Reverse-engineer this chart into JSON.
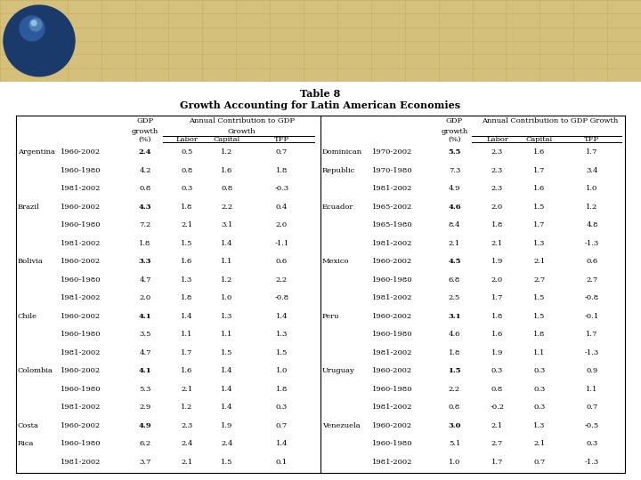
{
  "title_line1": "Table 8",
  "title_line2": "Growth Accounting for Latin American Economies",
  "left_table": {
    "rows": [
      [
        "Argentina",
        "1960-2002",
        "2.4",
        "0.5",
        "1.2",
        "0.7"
      ],
      [
        "",
        "1960-1980",
        "4.2",
        "0.8",
        "1.6",
        "1.8"
      ],
      [
        "",
        "1981-2002",
        "0.8",
        "0.3",
        "0.8",
        "-0.3"
      ],
      [
        "Brazil",
        "1960-2002",
        "4.3",
        "1.8",
        "2.2",
        "0.4"
      ],
      [
        "",
        "1960-1980",
        "7.2",
        "2.1",
        "3.1",
        "2.0"
      ],
      [
        "",
        "1981-2002",
        "1.8",
        "1.5",
        "1.4",
        "-1.1"
      ],
      [
        "Bolivia",
        "1960-2002",
        "3.3",
        "1.6",
        "1.1",
        "0.6"
      ],
      [
        "",
        "1960-1980",
        "4.7",
        "1.3",
        "1.2",
        "2.2"
      ],
      [
        "",
        "1981-2002",
        "2.0",
        "1.8",
        "1.0",
        "-0.8"
      ],
      [
        "Chile",
        "1960-2002",
        "4.1",
        "1.4",
        "1.3",
        "1.4"
      ],
      [
        "",
        "1960-1980",
        "3.5",
        "1.1",
        "1.1",
        "1.3"
      ],
      [
        "",
        "1981-2002",
        "4.7",
        "1.7",
        "1.5",
        "1.5"
      ],
      [
        "Colombia",
        "1960-2002",
        "4.1",
        "1.6",
        "1.4",
        "1.0"
      ],
      [
        "",
        "1960-1980",
        "5.3",
        "2.1",
        "1.4",
        "1.8"
      ],
      [
        "",
        "1981-2002",
        "2.9",
        "1.2",
        "1.4",
        "0.3"
      ],
      [
        "Costa",
        "1960-2002",
        "4.9",
        "2.3",
        "1.9",
        "0.7"
      ],
      [
        "Rica",
        "1960-1980",
        "6.2",
        "2.4",
        "2.4",
        "1.4"
      ],
      [
        "",
        "1981-2002",
        "3.7",
        "2.1",
        "1.5",
        "0.1"
      ]
    ]
  },
  "right_table": {
    "rows": [
      [
        "Dominican",
        "1970-2002",
        "5.5",
        "2.3",
        "1.6",
        "1.7"
      ],
      [
        "Republic",
        "1970-1980",
        "7.3",
        "2.3",
        "1.7",
        "3.4"
      ],
      [
        "",
        "1981-2002",
        "4.9",
        "2.3",
        "1.6",
        "1.0"
      ],
      [
        "Ecuador",
        "1965-2002",
        "4.6",
        "2.0",
        "1.5",
        "1.2"
      ],
      [
        "",
        "1965-1980",
        "8.4",
        "1.8",
        "1.7",
        "4.8"
      ],
      [
        "",
        "1981-2002",
        "2.1",
        "2.1",
        "1.3",
        "-1.3"
      ],
      [
        "Mexico",
        "1960-2002",
        "4.5",
        "1.9",
        "2.1",
        "0.6"
      ],
      [
        "",
        "1960-1980",
        "6.8",
        "2.0",
        "2.7",
        "2.7"
      ],
      [
        "",
        "1981-2002",
        "2.5",
        "1.7",
        "1.5",
        "-0.8"
      ],
      [
        "Peru",
        "1960-2002",
        "3.1",
        "1.8",
        "1.5",
        "-0.1"
      ],
      [
        "",
        "1960-1980",
        "4.6",
        "1.6",
        "1.8",
        "1.7"
      ],
      [
        "",
        "1981-2002",
        "1.8",
        "1.9",
        "1.1",
        "-1.3"
      ],
      [
        "Uruguay",
        "1960-2002",
        "1.5",
        "0.3",
        "0.3",
        "0.9"
      ],
      [
        "",
        "1960-1980",
        "2.2",
        "0.8",
        "0.3",
        "1.1"
      ],
      [
        "",
        "1981-2002",
        "0.8",
        "-0.2",
        "0.3",
        "0.7"
      ],
      [
        "Venezuela",
        "1960-2002",
        "3.0",
        "2.1",
        "1.3",
        "-0.5"
      ],
      [
        "",
        "1960-1980",
        "5.1",
        "2.7",
        "2.1",
        "0.3"
      ],
      [
        "",
        "1981-2002",
        "1.0",
        "1.7",
        "0.7",
        "-1.3"
      ]
    ]
  },
  "bold_rows": [
    0,
    3,
    6,
    9,
    12,
    15
  ],
  "banner_color": "#d4c07a",
  "banner_line_color": "#c0a850",
  "globe_color": "#1a3a6b",
  "globe_highlight1": "#2a5a9b",
  "globe_highlight2": "#5080b0"
}
